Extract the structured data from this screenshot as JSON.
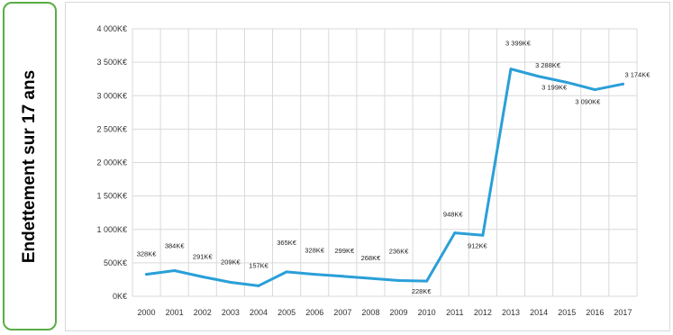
{
  "side_title": "Endettement sur 17 ans",
  "colors": {
    "line": "#2a9fd8",
    "grid": "#d9d9d9",
    "panel_border": "#5aad46"
  },
  "chart_data": {
    "type": "line",
    "title": "",
    "xlabel": "",
    "ylabel": "",
    "ylim": [
      0,
      4000
    ],
    "grid": true,
    "categories": [
      "2000",
      "2001",
      "2002",
      "2003",
      "2004",
      "2005",
      "2006",
      "2007",
      "2008",
      "2009",
      "2010",
      "2011",
      "2012",
      "2013",
      "2014",
      "2015",
      "2016",
      "2017"
    ],
    "values": [
      328,
      384,
      291,
      209,
      157,
      365,
      328,
      299,
      268,
      236,
      228,
      948,
      912,
      3399,
      3288,
      3199,
      3090,
      3174
    ],
    "data_labels": [
      "328K€",
      "384K€",
      "291K€",
      "209K€",
      "157K€",
      "365K€",
      "328K€",
      "299K€",
      "268K€",
      "236K€",
      "228K€",
      "948K€",
      "912K€",
      "3 399K€",
      "3 288K€",
      "3 199K€",
      "3 090K€",
      "3 174K€"
    ],
    "y_ticks": [
      0,
      500,
      1000,
      1500,
      2000,
      2500,
      3000,
      3500,
      4000
    ],
    "y_tick_labels": [
      "0K€",
      "500K€",
      "1 000K€",
      "1 500K€",
      "2 000K€",
      "2 500K€",
      "3 000K€",
      "3 500K€",
      "4 000K€"
    ]
  }
}
